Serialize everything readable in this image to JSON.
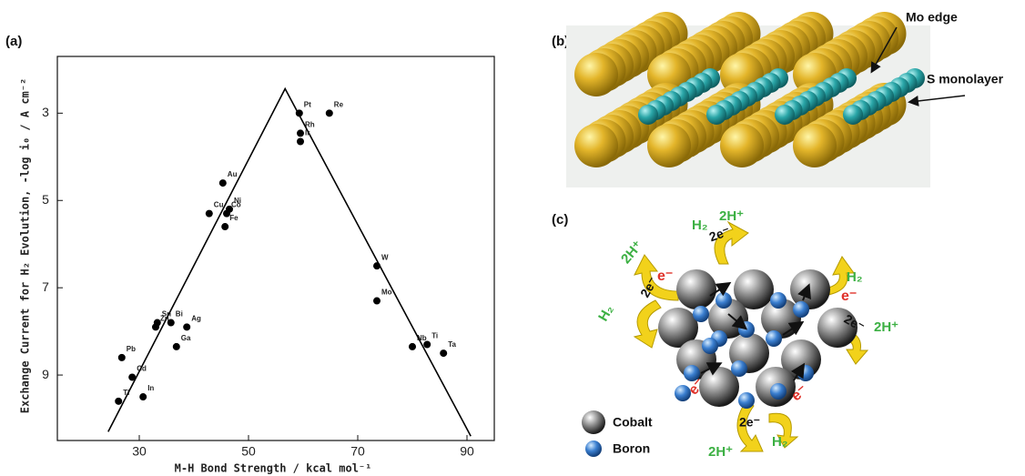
{
  "chart_data": {
    "type": "scatter",
    "x_label": "M-H Bond Strength / kcal mol⁻¹",
    "y_label": "Exchange Current for H₂ Evolution, -log i₀ / A cm⁻²",
    "xlim": [
      15,
      95
    ],
    "xticks": [
      30,
      50,
      70,
      90
    ],
    "ylim": [
      10.5,
      1.7
    ],
    "yticks": [
      3,
      5,
      7,
      9
    ],
    "grid": false,
    "series": [
      {
        "color": "#000000",
        "marker": "point",
        "labels": [
          "Pt",
          "Re",
          "Rh",
          "Ir",
          "Au",
          "Ni",
          "Co",
          "Cu",
          "Fe",
          "W",
          "Mo",
          "Ti",
          "Nb",
          "Ta",
          "Sn",
          "Zn",
          "Bi",
          "Ag",
          "Ga",
          "Pb",
          "Cd",
          "Tl",
          "In"
        ],
        "x": [
          59.3,
          64.8,
          59.5,
          59.5,
          45.3,
          46.5,
          46.0,
          42.8,
          45.7,
          73.5,
          73.5,
          82.7,
          80.0,
          85.7,
          33.3,
          33.0,
          35.8,
          38.7,
          36.8,
          26.8,
          28.7,
          26.2,
          30.7
        ],
        "values": [
          3.0,
          3.0,
          3.46,
          3.65,
          4.6,
          5.2,
          5.3,
          5.3,
          5.6,
          6.5,
          7.3,
          8.3,
          8.35,
          8.5,
          7.8,
          7.9,
          7.8,
          7.9,
          8.35,
          8.6,
          9.05,
          9.6,
          9.5
        ]
      },
      {
        "color": "#000000",
        "marker": "line",
        "x": [
          24.3,
          56.7,
          90.7
        ],
        "values": [
          10.3,
          2.44,
          10.4
        ]
      }
    ]
  },
  "panel_a": {
    "label": "(a)"
  },
  "panel_b": {
    "label": "(b)",
    "annotations": [
      "Mo edge",
      "S monolayer"
    ]
  },
  "panel_c": {
    "label": "(c)",
    "h2": [
      "H₂",
      "H₂",
      "H₂",
      "H₂"
    ],
    "protons": [
      "2H⁺",
      "2H⁺",
      "2H⁺",
      "2H⁺"
    ],
    "electrons": [
      "e⁻",
      "e⁻",
      "e⁻",
      "e⁻"
    ],
    "electron_pairs": [
      "2e⁻",
      "2e⁻",
      "2e⁻",
      "2e⁻"
    ],
    "legend": [
      "Cobalt",
      "Boron"
    ]
  }
}
